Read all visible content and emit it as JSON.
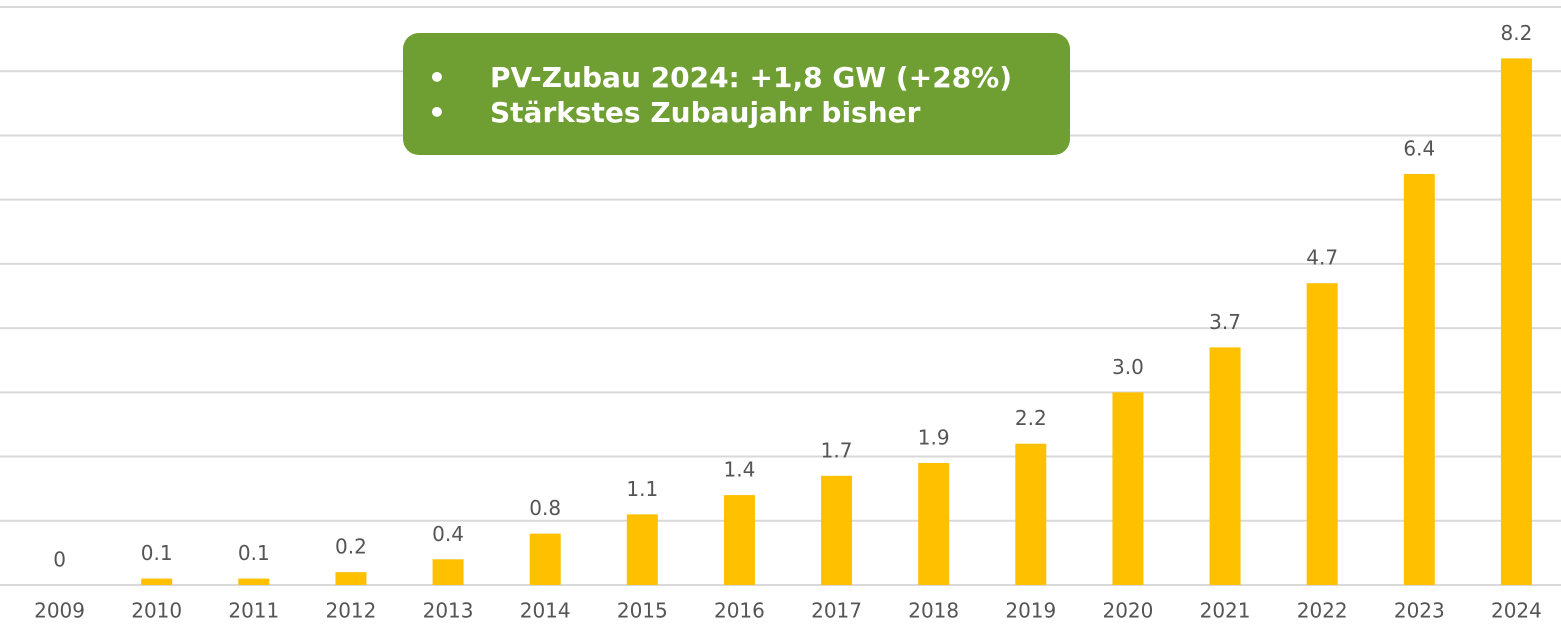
{
  "chart_data": {
    "type": "bar",
    "categories": [
      "2009",
      "2010",
      "2011",
      "2012",
      "2013",
      "2014",
      "2015",
      "2016",
      "2017",
      "2018",
      "2019",
      "2020",
      "2021",
      "2022",
      "2023",
      "2024"
    ],
    "values": [
      0,
      0.1,
      0.1,
      0.2,
      0.4,
      0.8,
      1.1,
      1.4,
      1.7,
      1.9,
      2.2,
      3.0,
      3.7,
      4.7,
      6.4,
      8.2
    ],
    "value_labels": [
      "0",
      "0.1",
      "0.1",
      "0.2",
      "0.4",
      "0.8",
      "1.1",
      "1.4",
      "1.7",
      "1.9",
      "2.2",
      "3.0",
      "3.7",
      "4.7",
      "6.4",
      "8.2"
    ],
    "color": "#ffc000",
    "ylim": [
      0,
      9
    ],
    "yticks": [
      0,
      1,
      2,
      3,
      4,
      5,
      6,
      7,
      8,
      9
    ],
    "ytick_labels": false,
    "grid": true,
    "annotations": [
      "PV-Zubau 2024: +1,8 GW (+28%)",
      "Stärkstes Zubaujahr bisher"
    ]
  }
}
